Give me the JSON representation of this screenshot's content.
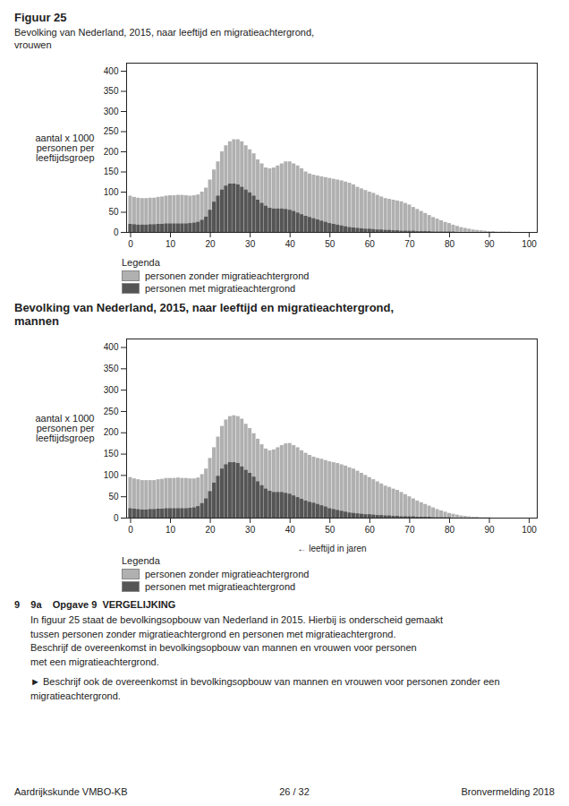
{
  "chart_data": [
    {
      "type": "bar",
      "title": "Figuur 25",
      "subtitle": "Bevolking van Nederland, 2015, naar leeftijd en migratieachtergrond,\nvrouwen",
      "ylabel": "aantal x 1000\npersonen per\nleeftijdsgroep",
      "legend_title": "Legenda",
      "legend": "bottom",
      "stacked": false,
      "grid": false,
      "x": [
        0,
        1,
        2,
        3,
        4,
        5,
        6,
        7,
        8,
        9,
        10,
        11,
        12,
        13,
        14,
        15,
        16,
        17,
        18,
        19,
        20,
        21,
        22,
        23,
        24,
        25,
        26,
        27,
        28,
        29,
        30,
        31,
        32,
        33,
        34,
        35,
        36,
        37,
        38,
        39,
        40,
        41,
        42,
        43,
        44,
        45,
        46,
        47,
        48,
        49,
        50,
        51,
        52,
        53,
        54,
        55,
        56,
        57,
        58,
        59,
        60,
        61,
        62,
        63,
        64,
        65,
        66,
        67,
        68,
        69,
        70,
        71,
        72,
        73,
        74,
        75,
        76,
        77,
        78,
        79,
        80,
        81,
        82,
        83,
        84,
        85,
        86,
        87,
        88,
        89,
        90,
        91,
        92,
        93,
        94,
        95,
        96,
        97,
        98,
        99,
        100
      ],
      "series": [
        {
          "name": "personen zonder migratieachtergrond",
          "color": "#b0b0b0",
          "values": [
            90,
            87,
            85,
            84,
            84,
            85,
            85,
            87,
            88,
            90,
            91,
            91,
            92,
            92,
            91,
            90,
            91,
            93,
            100,
            110,
            130,
            155,
            175,
            200,
            215,
            225,
            230,
            230,
            225,
            215,
            205,
            195,
            180,
            170,
            160,
            158,
            160,
            165,
            170,
            175,
            175,
            170,
            165,
            158,
            150,
            145,
            142,
            140,
            138,
            136,
            134,
            132,
            130,
            128,
            125,
            122,
            118,
            112,
            108,
            104,
            100,
            97,
            92,
            88,
            84,
            82,
            80,
            78,
            76,
            72,
            68,
            62,
            57,
            52,
            47,
            42,
            37,
            33,
            29,
            25,
            22,
            18,
            15,
            12,
            10,
            8,
            6,
            5,
            4,
            3,
            2,
            2,
            1,
            1,
            1,
            1,
            0,
            0,
            0,
            0,
            0
          ]
        },
        {
          "name": "personen met migratieachtergrond",
          "color": "#555555",
          "values": [
            20,
            19,
            18,
            18,
            18,
            19,
            19,
            20,
            20,
            21,
            21,
            21,
            21,
            21,
            21,
            22,
            23,
            25,
            30,
            38,
            55,
            75,
            90,
            105,
            115,
            120,
            120,
            118,
            112,
            105,
            98,
            90,
            80,
            72,
            65,
            60,
            58,
            58,
            58,
            57,
            55,
            52,
            48,
            44,
            40,
            37,
            34,
            31,
            28,
            25,
            22,
            20,
            18,
            16,
            14,
            12,
            11,
            10,
            9,
            8,
            8,
            7,
            6,
            6,
            5,
            5,
            4,
            4,
            3,
            3,
            3,
            3,
            2,
            2,
            2,
            2,
            1,
            1,
            1,
            1,
            1,
            1,
            0,
            0,
            0,
            0,
            0,
            0,
            0,
            0,
            0,
            0,
            0,
            0,
            0,
            0,
            0,
            0,
            0,
            0,
            0
          ]
        }
      ],
      "xlim": [
        -1,
        102
      ],
      "xticks": [
        0,
        10,
        20,
        30,
        40,
        50,
        60,
        70,
        80,
        90,
        100
      ],
      "ylim": [
        0,
        420
      ],
      "yticks": [
        0,
        50,
        100,
        150,
        200,
        250,
        300,
        350,
        400
      ]
    },
    {
      "type": "bar",
      "title": "Bevolking van Nederland, 2015, naar leeftijd en migratieachtergrond,\nmannen",
      "xlabel": "← leeftijd in jaren",
      "ylabel": "aantal x 1000\npersonen per\nleeftijdsgroep",
      "legend_title": "Legenda",
      "legend": "bottom",
      "stacked": false,
      "grid": false,
      "x": [
        0,
        1,
        2,
        3,
        4,
        5,
        6,
        7,
        8,
        9,
        10,
        11,
        12,
        13,
        14,
        15,
        16,
        17,
        18,
        19,
        20,
        21,
        22,
        23,
        24,
        25,
        26,
        27,
        28,
        29,
        30,
        31,
        32,
        33,
        34,
        35,
        36,
        37,
        38,
        39,
        40,
        41,
        42,
        43,
        44,
        45,
        46,
        47,
        48,
        49,
        50,
        51,
        52,
        53,
        54,
        55,
        56,
        57,
        58,
        59,
        60,
        61,
        62,
        63,
        64,
        65,
        66,
        67,
        68,
        69,
        70,
        71,
        72,
        73,
        74,
        75,
        76,
        77,
        78,
        79,
        80,
        81,
        82,
        83,
        84,
        85,
        86,
        87,
        88,
        89,
        90,
        91,
        92,
        93,
        94,
        95,
        96,
        97,
        98,
        99,
        100
      ],
      "series": [
        {
          "name": "personen zonder migratieachtergrond",
          "color": "#b0b0b0",
          "values": [
            95,
            92,
            90,
            88,
            88,
            88,
            88,
            90,
            91,
            93,
            93,
            93,
            94,
            93,
            93,
            92,
            92,
            94,
            102,
            115,
            140,
            165,
            190,
            215,
            230,
            238,
            240,
            238,
            232,
            220,
            210,
            198,
            185,
            172,
            162,
            158,
            160,
            165,
            170,
            174,
            175,
            170,
            165,
            158,
            152,
            147,
            143,
            140,
            138,
            135,
            132,
            130,
            128,
            125,
            122,
            118,
            115,
            110,
            105,
            100,
            95,
            90,
            85,
            80,
            75,
            72,
            68,
            65,
            60,
            55,
            50,
            45,
            40,
            36,
            32,
            28,
            24,
            20,
            17,
            14,
            11,
            9,
            7,
            5,
            4,
            3,
            2,
            2,
            1,
            1,
            1,
            0,
            0,
            0,
            0,
            0,
            0,
            0,
            0,
            0,
            0
          ]
        },
        {
          "name": "personen met migratieachtergrond",
          "color": "#555555",
          "values": [
            22,
            21,
            20,
            19,
            19,
            20,
            20,
            21,
            21,
            22,
            22,
            22,
            22,
            22,
            22,
            23,
            24,
            27,
            34,
            45,
            62,
            82,
            98,
            115,
            125,
            130,
            130,
            128,
            120,
            112,
            105,
            96,
            85,
            76,
            68,
            63,
            60,
            60,
            60,
            58,
            56,
            52,
            48,
            44,
            40,
            37,
            35,
            32,
            29,
            26,
            22,
            20,
            18,
            16,
            14,
            12,
            11,
            10,
            9,
            8,
            8,
            7,
            6,
            6,
            5,
            5,
            4,
            4,
            3,
            3,
            3,
            3,
            2,
            2,
            2,
            2,
            1,
            1,
            1,
            1,
            1,
            0,
            0,
            0,
            0,
            0,
            0,
            0,
            0,
            0,
            0,
            0,
            0,
            0,
            0,
            0,
            0,
            0,
            0,
            0,
            0
          ]
        }
      ],
      "xlim": [
        -1,
        102
      ],
      "xticks": [
        0,
        10,
        20,
        30,
        40,
        50,
        60,
        70,
        80,
        90,
        100
      ],
      "ylim": [
        0,
        420
      ],
      "yticks": [
        0,
        50,
        100,
        150,
        200,
        250,
        300,
        350,
        400
      ],
      "annotations": [
        "9    9a    Opgave 9  VERGELIJKING",
        "In figuur 25 staat de bevolkingsopbouw van Nederland in 2015. Hierbij is onderscheid gemaakt",
        "tussen personen zonder migratieachtergrond en personen met migratieachtergrond.",
        "Beschrijf de overeenkomst in bevolkingsopbouw van mannen en vrouwen voor personen",
        "met een migratieachtergrond.",
        "►  Beschrijf ook de overeenkomst in bevolkingsopbouw van mannen en vrouwen voor personen zonder een migratieachtergrond."
      ],
      "footer": [
        "Aardrijkskunde VMBO-KB",
        "26 / 32",
        "Bronvermelding 2018"
      ]
    }
  ]
}
